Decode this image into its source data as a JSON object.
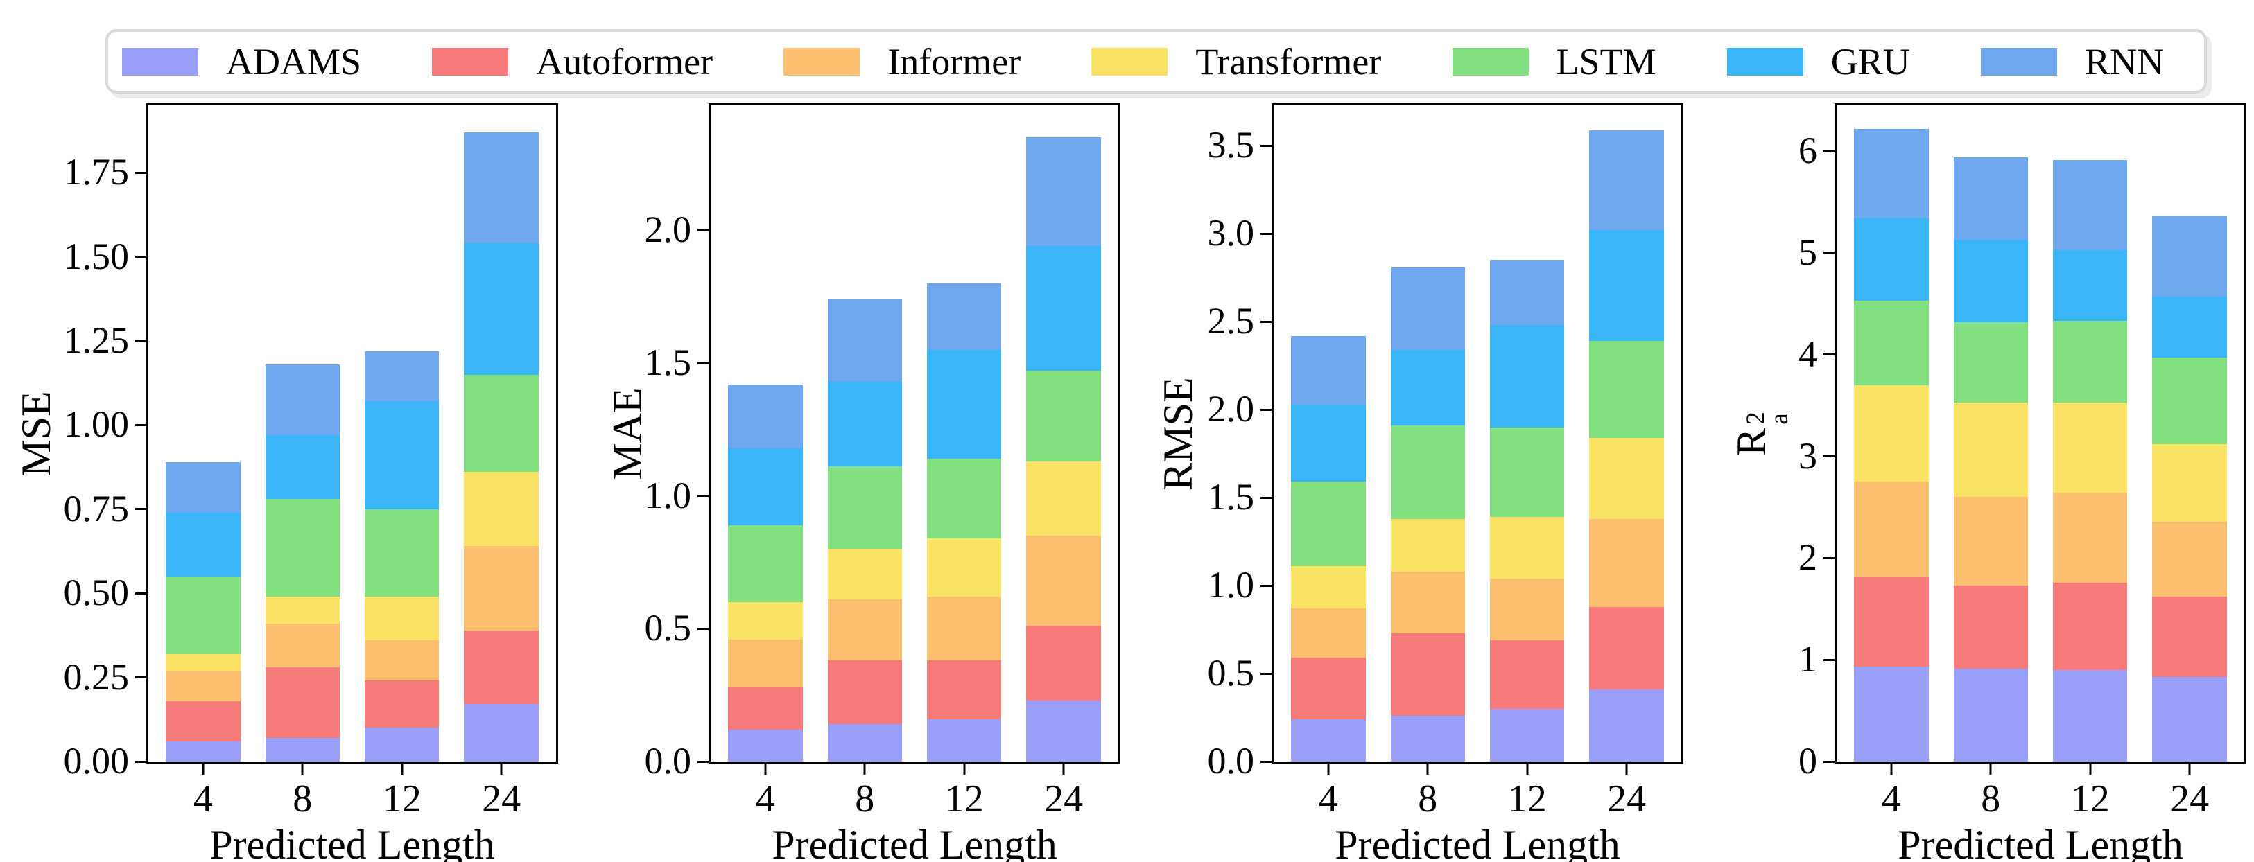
{
  "figure": {
    "background": "#ffffff",
    "xlabel": "Predicted Length",
    "categories": [
      "4",
      "8",
      "12",
      "24"
    ]
  },
  "legend": {
    "position": "top",
    "items": [
      {
        "label": "ADAMS",
        "color": "#9aa0f9"
      },
      {
        "label": "Autoformer",
        "color": "#f87b7b"
      },
      {
        "label": "Informer",
        "color": "#fcbf70"
      },
      {
        "label": "Transformer",
        "color": "#f9e264"
      },
      {
        "label": "LSTM",
        "color": "#82e081"
      },
      {
        "label": "GRU",
        "color": "#3ab6f8"
      },
      {
        "label": "RNN",
        "color": "#70a8ef"
      }
    ]
  },
  "chart_data": [
    {
      "type": "bar",
      "stacked": true,
      "ylabel": "MSE",
      "xlabel": "Predicted Length",
      "categories": [
        "4",
        "8",
        "12",
        "24"
      ],
      "ylim": [
        0,
        1.95
      ],
      "yticks": [
        0,
        0.25,
        0.5,
        0.75,
        1.0,
        1.25,
        1.5,
        1.75
      ],
      "ytick_labels": [
        "0.00",
        "0.25",
        "0.50",
        "0.75",
        "1.00",
        "1.25",
        "1.50",
        "1.75"
      ],
      "grid": false,
      "ylabel_offset": -162,
      "series": [
        {
          "name": "ADAMS",
          "values": [
            0.06,
            0.07,
            0.1,
            0.17
          ]
        },
        {
          "name": "Autoformer",
          "values": [
            0.12,
            0.21,
            0.14,
            0.22
          ]
        },
        {
          "name": "Informer",
          "values": [
            0.09,
            0.13,
            0.12,
            0.25
          ]
        },
        {
          "name": "Transformer",
          "values": [
            0.05,
            0.08,
            0.13,
            0.22
          ]
        },
        {
          "name": "LSTM",
          "values": [
            0.23,
            0.29,
            0.26,
            0.29
          ]
        },
        {
          "name": "GRU",
          "values": [
            0.19,
            0.19,
            0.32,
            0.39
          ]
        },
        {
          "name": "RNN",
          "values": [
            0.15,
            0.21,
            0.15,
            0.33
          ]
        }
      ],
      "totals": [
        0.89,
        1.18,
        1.22,
        1.87
      ]
    },
    {
      "type": "bar",
      "stacked": true,
      "ylabel": "MAE",
      "xlabel": "Predicted Length",
      "categories": [
        "4",
        "8",
        "12",
        "24"
      ],
      "ylim": [
        0,
        2.47
      ],
      "yticks": [
        0,
        0.5,
        1.0,
        1.5,
        2.0
      ],
      "ytick_labels": [
        "0.0",
        "0.5",
        "1.0",
        "1.5",
        "2.0"
      ],
      "grid": false,
      "ylabel_offset": -120,
      "series": [
        {
          "name": "ADAMS",
          "values": [
            0.12,
            0.14,
            0.16,
            0.23
          ]
        },
        {
          "name": "Autoformer",
          "values": [
            0.16,
            0.24,
            0.22,
            0.28
          ]
        },
        {
          "name": "Informer",
          "values": [
            0.18,
            0.23,
            0.24,
            0.34
          ]
        },
        {
          "name": "Transformer",
          "values": [
            0.14,
            0.19,
            0.22,
            0.28
          ]
        },
        {
          "name": "LSTM",
          "values": [
            0.29,
            0.31,
            0.3,
            0.34
          ]
        },
        {
          "name": "GRU",
          "values": [
            0.29,
            0.32,
            0.41,
            0.47
          ]
        },
        {
          "name": "RNN",
          "values": [
            0.24,
            0.31,
            0.25,
            0.41
          ]
        }
      ],
      "totals": [
        1.42,
        1.74,
        1.8,
        2.35
      ]
    },
    {
      "type": "bar",
      "stacked": true,
      "ylabel": "RMSE",
      "xlabel": "Predicted Length",
      "categories": [
        "4",
        "8",
        "12",
        "24"
      ],
      "ylim": [
        0,
        3.73
      ],
      "yticks": [
        0,
        0.5,
        1.0,
        1.5,
        2.0,
        2.5,
        3.0,
        3.5
      ],
      "ytick_labels": [
        "0.0",
        "0.5",
        "1.0",
        "1.5",
        "2.0",
        "2.5",
        "3.0",
        "3.5"
      ],
      "grid": false,
      "ylabel_offset": -138,
      "series": [
        {
          "name": "ADAMS",
          "values": [
            0.24,
            0.26,
            0.3,
            0.41
          ]
        },
        {
          "name": "Autoformer",
          "values": [
            0.35,
            0.47,
            0.39,
            0.47
          ]
        },
        {
          "name": "Informer",
          "values": [
            0.28,
            0.35,
            0.35,
            0.5
          ]
        },
        {
          "name": "Transformer",
          "values": [
            0.24,
            0.3,
            0.35,
            0.46
          ]
        },
        {
          "name": "LSTM",
          "values": [
            0.48,
            0.53,
            0.51,
            0.55
          ]
        },
        {
          "name": "GRU",
          "values": [
            0.44,
            0.43,
            0.58,
            0.63
          ]
        },
        {
          "name": "RNN",
          "values": [
            0.39,
            0.47,
            0.37,
            0.57
          ]
        }
      ],
      "totals": [
        2.42,
        2.81,
        2.85,
        3.59
      ]
    },
    {
      "type": "bar",
      "stacked": true,
      "ylabel": "R_a^2",
      "ylabel_parts": {
        "base": "R",
        "sup": "2",
        "sub": "a"
      },
      "xlabel": "Predicted Length",
      "categories": [
        "4",
        "8",
        "12",
        "24"
      ],
      "ylim": [
        0,
        6.45
      ],
      "yticks": [
        0,
        1,
        2,
        3,
        4,
        5,
        6
      ],
      "ytick_labels": [
        "0",
        "1",
        "2",
        "3",
        "4",
        "5",
        "6"
      ],
      "grid": false,
      "ylabel_offset": -108,
      "series": [
        {
          "name": "ADAMS",
          "values": [
            0.93,
            0.91,
            0.9,
            0.83
          ]
        },
        {
          "name": "Autoformer",
          "values": [
            0.89,
            0.82,
            0.86,
            0.79
          ]
        },
        {
          "name": "Informer",
          "values": [
            0.93,
            0.87,
            0.88,
            0.74
          ]
        },
        {
          "name": "Transformer",
          "values": [
            0.95,
            0.93,
            0.89,
            0.76
          ]
        },
        {
          "name": "LSTM",
          "values": [
            0.83,
            0.79,
            0.8,
            0.85
          ]
        },
        {
          "name": "GRU",
          "values": [
            0.81,
            0.81,
            0.7,
            0.6
          ]
        },
        {
          "name": "RNN",
          "values": [
            0.88,
            0.81,
            0.88,
            0.79
          ]
        }
      ],
      "totals": [
        6.22,
        5.94,
        5.91,
        5.36
      ]
    }
  ]
}
